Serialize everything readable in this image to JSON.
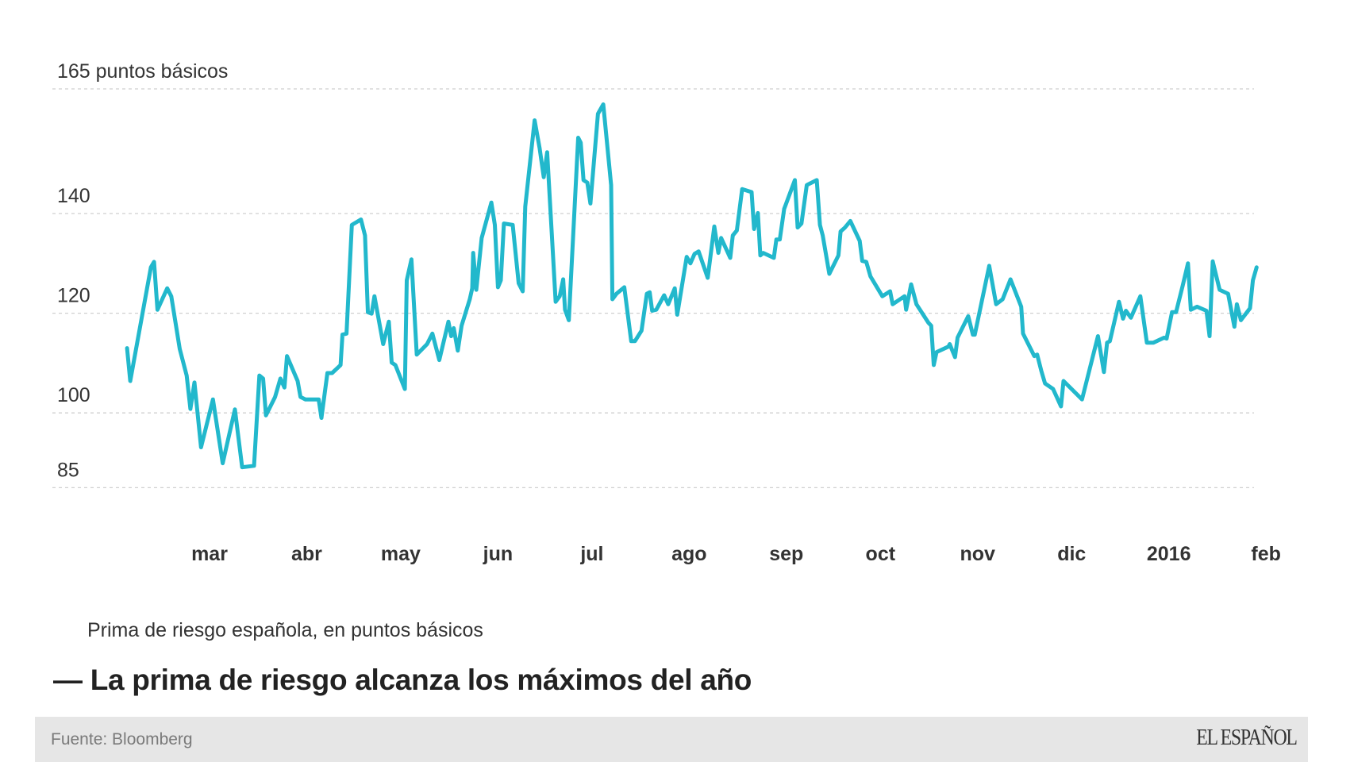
{
  "chart_data": {
    "type": "line",
    "title": "La prima de riesgo alcanza los máximos del año",
    "subtitle": "Prima de riesgo española, en puntos básicos",
    "source": "Fuente: Bloomberg",
    "ylabel": "puntos básicos",
    "xlabel": "",
    "x_unit": "days since 2015-02-01",
    "ylim": [
      85,
      165
    ],
    "xlim": [
      0,
      365
    ],
    "grid": true,
    "line_color": "#22b8cc",
    "y_ticks": [
      {
        "value": 165,
        "label": "165 puntos básicos"
      },
      {
        "value": 140,
        "label": "140"
      },
      {
        "value": 120,
        "label": "120"
      },
      {
        "value": 100,
        "label": "100"
      },
      {
        "value": 85,
        "label": "85"
      }
    ],
    "x_ticks": [
      {
        "day": 28,
        "label": "mar"
      },
      {
        "day": 59,
        "label": "abr"
      },
      {
        "day": 89,
        "label": "may"
      },
      {
        "day": 120,
        "label": "jun"
      },
      {
        "day": 150,
        "label": "jul"
      },
      {
        "day": 181,
        "label": "ago"
      },
      {
        "day": 212,
        "label": "sep"
      },
      {
        "day": 242,
        "label": "oct"
      },
      {
        "day": 273,
        "label": "nov"
      },
      {
        "day": 303,
        "label": "dic"
      },
      {
        "day": 334,
        "label": "2016"
      },
      {
        "day": 365,
        "label": "feb"
      }
    ],
    "series": [
      {
        "name": "Prima de riesgo española",
        "x": [
          1.7,
          2.7,
          9.3,
          10.3,
          11.4,
          14.5,
          15.8,
          18.5,
          20.7,
          21.9,
          23.2,
          25.3,
          29.1,
          32.2,
          36.1,
          38.4,
          42.2,
          43.9,
          45.1,
          46.0,
          48.9,
          50.6,
          51.9,
          52.7,
          56.1,
          57.0,
          58.6,
          62.8,
          63.7,
          65.6,
          67.1,
          69.8,
          70.4,
          71.7,
          73.4,
          76.3,
          77.6,
          78.5,
          79.7,
          80.6,
          83.4,
          85.2,
          86.1,
          87.3,
          90.3,
          90.9,
          92.4,
          94.1,
          97.4,
          99.1,
          101.3,
          104.2,
          105.1,
          105.9,
          107.2,
          108.4,
          111.0,
          111.8,
          112.1,
          113.1,
          114.8,
          117.9,
          119.0,
          120.0,
          120.9,
          121.9,
          124.7,
          126.6,
          127.9,
          128.7,
          131.7,
          133.3,
          134.6,
          135.7,
          138.4,
          139.7,
          140.8,
          141.4,
          142.6,
          145.6,
          146.4,
          147.3,
          148.5,
          149.5,
          151.9,
          153.6,
          156.1,
          156.5,
          157.8,
          160.3,
          162.5,
          163.7,
          165.8,
          167.5,
          168.4,
          169.2,
          170.5,
          173.0,
          174.3,
          176.4,
          177.2,
          180.2,
          181.4,
          182.7,
          184.0,
          186.9,
          189.0,
          190.3,
          191.2,
          194.1,
          194.9,
          196.2,
          197.9,
          200.9,
          201.7,
          202.9,
          203.7,
          204.6,
          208.0,
          208.8,
          209.9,
          211.3,
          214.7,
          215.6,
          216.8,
          218.5,
          221.7,
          222.7,
          223.6,
          225.7,
          228.6,
          229.3,
          230.7,
          232.4,
          235.4,
          236.2,
          237.5,
          238.8,
          242.6,
          245.1,
          245.9,
          249.7,
          250.2,
          251.8,
          253.5,
          257.3,
          258.2,
          259.0,
          259.9,
          263.7,
          264.1,
          265.8,
          266.6,
          270.0,
          271.5,
          272.1,
          276.7,
          278.9,
          281.0,
          283.5,
          286.9,
          287.5,
          291.1,
          292.0,
          293.3,
          294.5,
          297.1,
          299.6,
          300.4,
          306.3,
          311.4,
          313.3,
          314.3,
          315.2,
          318.1,
          319.4,
          320.3,
          321.9,
          324.9,
          327.0,
          329.1,
          332.5,
          333.3,
          335.0,
          336.3,
          338.4,
          340.1,
          341.0,
          343.0,
          346.0,
          347.0,
          348.0,
          350.2,
          352.9,
          354.9,
          355.7,
          357.0,
          359.9,
          360.8,
          362.0
        ],
        "values": [
          113.0,
          106.4,
          129.2,
          130.3,
          120.7,
          125.0,
          123.4,
          112.8,
          107.5,
          100.8,
          106.1,
          93.1,
          102.7,
          89.9,
          100.7,
          89.1,
          89.4,
          107.5,
          106.9,
          99.5,
          103.2,
          106.9,
          105.1,
          111.4,
          106.4,
          103.2,
          102.7,
          102.7,
          99.0,
          108.0,
          108.0,
          109.6,
          115.7,
          115.9,
          137.7,
          138.8,
          135.6,
          120.2,
          119.9,
          123.4,
          113.8,
          118.3,
          110.1,
          109.6,
          104.8,
          126.6,
          130.8,
          111.7,
          113.8,
          115.9,
          110.6,
          118.3,
          115.4,
          117.0,
          112.5,
          117.5,
          122.8,
          125.0,
          132.1,
          124.7,
          135.1,
          142.2,
          137.7,
          125.2,
          126.6,
          138.0,
          137.7,
          126.0,
          124.4,
          141.4,
          158.7,
          153.1,
          147.3,
          152.3,
          122.3,
          123.4,
          126.8,
          120.7,
          118.6,
          155.2,
          154.2,
          146.7,
          146.2,
          142.0,
          160.0,
          161.9,
          145.7,
          122.8,
          123.9,
          125.2,
          114.4,
          114.4,
          116.5,
          123.9,
          124.2,
          120.5,
          120.7,
          123.6,
          121.8,
          125.0,
          119.7,
          131.3,
          130.0,
          131.9,
          132.4,
          127.1,
          137.4,
          132.1,
          135.1,
          131.1,
          135.6,
          136.6,
          144.9,
          144.3,
          136.9,
          140.1,
          131.6,
          132.1,
          131.1,
          134.8,
          134.8,
          140.9,
          146.7,
          137.2,
          138.0,
          145.7,
          146.7,
          137.7,
          135.6,
          127.9,
          131.6,
          136.4,
          137.2,
          138.5,
          134.5,
          130.5,
          130.3,
          127.4,
          123.4,
          124.4,
          121.8,
          123.4,
          120.7,
          125.8,
          121.8,
          118.1,
          117.5,
          109.6,
          112.2,
          113.3,
          113.8,
          111.2,
          115.1,
          119.4,
          115.7,
          115.7,
          129.5,
          121.8,
          122.8,
          126.8,
          121.3,
          115.9,
          111.4,
          111.7,
          108.5,
          105.9,
          104.8,
          101.3,
          106.4,
          102.7,
          115.4,
          108.2,
          114.1,
          114.4,
          122.3,
          118.9,
          120.5,
          119.1,
          123.4,
          114.1,
          114.1,
          115.1,
          114.9,
          120.2,
          120.2,
          125.5,
          130.0,
          120.7,
          121.3,
          120.5,
          115.4,
          130.4,
          124.7,
          123.9,
          117.3,
          121.8,
          118.6,
          121.0,
          126.6,
          129.2
        ]
      }
    ]
  },
  "footer": {
    "source": "Fuente: Bloomberg",
    "logo": "EL ESPAÑOL"
  }
}
